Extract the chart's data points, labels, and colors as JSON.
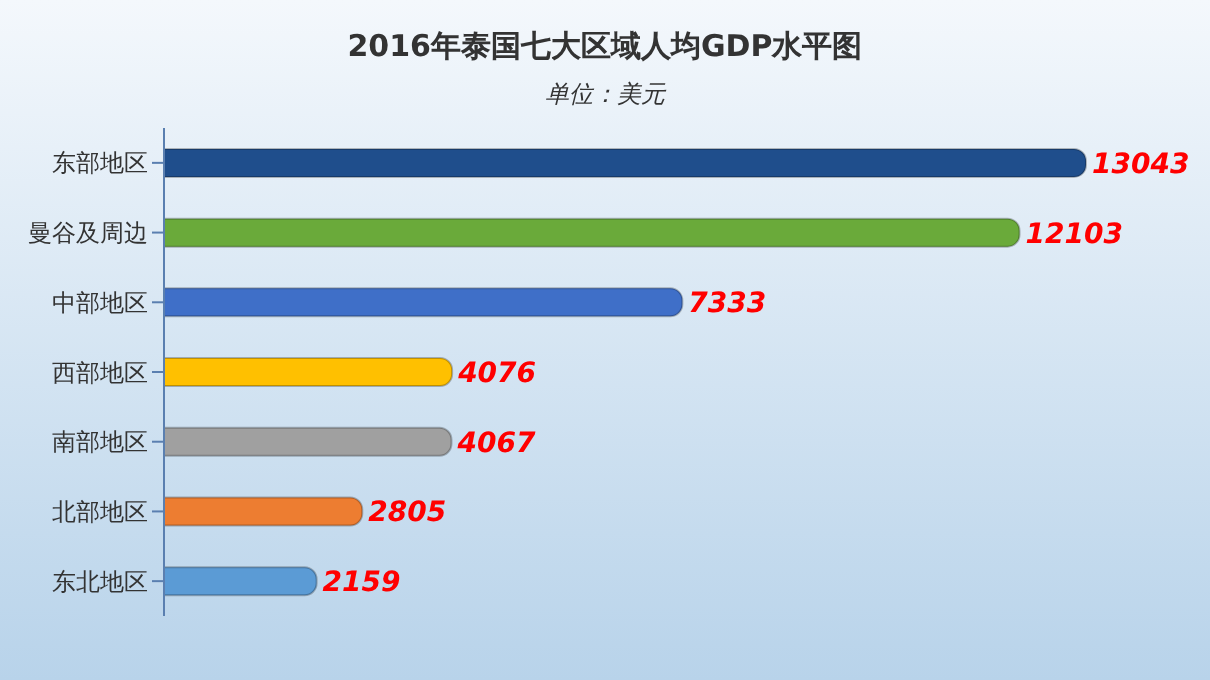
{
  "chart_data": {
    "type": "bar",
    "orientation": "horizontal",
    "title": "2016年泰国七大区域人均GDP水平图",
    "subtitle": "单位：美元",
    "categories": [
      "东部地区",
      "曼谷及周边",
      "中部地区",
      "西部地区",
      "南部地区",
      "北部地区",
      "东北地区"
    ],
    "values": [
      13043,
      12103,
      7333,
      4076,
      4067,
      2805,
      2159
    ],
    "colors": [
      "#1f4e8c",
      "#6aaa3a",
      "#3f6fc8",
      "#ffc000",
      "#a0a0a0",
      "#ed7d31",
      "#5b9bd5"
    ],
    "data_labels": true
  }
}
